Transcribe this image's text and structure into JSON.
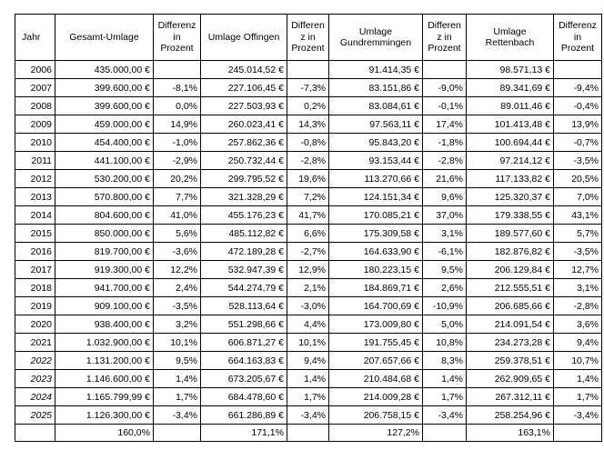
{
  "headers": [
    "Jahr",
    "Gesamt-Umlage",
    "Differenz in Prozent",
    "Umlage Offingen",
    "Differen z in Prozent",
    "Umlage Gundremmingen",
    "Differen z in Prozent",
    "Umlage Rettenbach",
    "Differenz in Prozent"
  ],
  "rows": [
    {
      "year": "2006",
      "italic": false,
      "gesamt": "435.000,00 €",
      "gesamt_diff": "",
      "offingen": "245.014,52 €",
      "offingen_diff": "",
      "gundremmingen": "91.414,35 €",
      "gundremmingen_diff": "",
      "rettenbach": "98.571,13 €",
      "rettenbach_diff": ""
    },
    {
      "year": "2007",
      "italic": false,
      "gesamt": "399.600,00 €",
      "gesamt_diff": "-8,1%",
      "offingen": "227.106,45 €",
      "offingen_diff": "-7,3%",
      "gundremmingen": "83.151,86 €",
      "gundremmingen_diff": "-9,0%",
      "rettenbach": "89.341,69 €",
      "rettenbach_diff": "-9,4%"
    },
    {
      "year": "2008",
      "italic": false,
      "gesamt": "399.600,00 €",
      "gesamt_diff": "0,0%",
      "offingen": "227.503,93 €",
      "offingen_diff": "0,2%",
      "gundremmingen": "83.084,61 €",
      "gundremmingen_diff": "-0,1%",
      "rettenbach": "89.011,46 €",
      "rettenbach_diff": "-0,4%"
    },
    {
      "year": "2009",
      "italic": false,
      "gesamt": "459.000,00 €",
      "gesamt_diff": "14,9%",
      "offingen": "260.023,41 €",
      "offingen_diff": "14,3%",
      "gundremmingen": "97.563,11 €",
      "gundremmingen_diff": "17,4%",
      "rettenbach": "101.413,48 €",
      "rettenbach_diff": "13,9%"
    },
    {
      "year": "2010",
      "italic": false,
      "gesamt": "454.400,00 €",
      "gesamt_diff": "-1,0%",
      "offingen": "257.862,36 €",
      "offingen_diff": "-0,8%",
      "gundremmingen": "95.843,20 €",
      "gundremmingen_diff": "-1,8%",
      "rettenbach": "100.694,44 €",
      "rettenbach_diff": "-0,7%"
    },
    {
      "year": "2011",
      "italic": false,
      "gesamt": "441.100,00 €",
      "gesamt_diff": "-2,9%",
      "offingen": "250.732,44 €",
      "offingen_diff": "-2,8%",
      "gundremmingen": "93.153,44 €",
      "gundremmingen_diff": "-2,8%",
      "rettenbach": "97.214,12 €",
      "rettenbach_diff": "-3,5%"
    },
    {
      "year": "2012",
      "italic": false,
      "gesamt": "530.200,00 €",
      "gesamt_diff": "20,2%",
      "offingen": "299.795,52 €",
      "offingen_diff": "19,6%",
      "gundremmingen": "113.270,66 €",
      "gundremmingen_diff": "21,6%",
      "rettenbach": "117.133,82 €",
      "rettenbach_diff": "20,5%"
    },
    {
      "year": "2013",
      "italic": false,
      "gesamt": "570.800,00 €",
      "gesamt_diff": "7,7%",
      "offingen": "321.328,29 €",
      "offingen_diff": "7,2%",
      "gundremmingen": "124.151,34 €",
      "gundremmingen_diff": "9,6%",
      "rettenbach": "125.320,37 €",
      "rettenbach_diff": "7,0%"
    },
    {
      "year": "2014",
      "italic": false,
      "gesamt": "804.600,00 €",
      "gesamt_diff": "41,0%",
      "offingen": "455.176,23 €",
      "offingen_diff": "41,7%",
      "gundremmingen": "170.085,21 €",
      "gundremmingen_diff": "37,0%",
      "rettenbach": "179.338,55 €",
      "rettenbach_diff": "43,1%"
    },
    {
      "year": "2015",
      "italic": false,
      "gesamt": "850.000,00 €",
      "gesamt_diff": "5,6%",
      "offingen": "485.112,82 €",
      "offingen_diff": "6,6%",
      "gundremmingen": "175.309,58 €",
      "gundremmingen_diff": "3,1%",
      "rettenbach": "189.577,60 €",
      "rettenbach_diff": "5,7%"
    },
    {
      "year": "2016",
      "italic": false,
      "gesamt": "819.700,00 €",
      "gesamt_diff": "-3,6%",
      "offingen": "472.189,28 €",
      "offingen_diff": "-2,7%",
      "gundremmingen": "164.633,90 €",
      "gundremmingen_diff": "-6,1%",
      "rettenbach": "182.876,82 €",
      "rettenbach_diff": "-3,5%"
    },
    {
      "year": "2017",
      "italic": false,
      "gesamt": "919.300,00 €",
      "gesamt_diff": "12,2%",
      "offingen": "532.947,39 €",
      "offingen_diff": "12,9%",
      "gundremmingen": "180.223,15 €",
      "gundremmingen_diff": "9,5%",
      "rettenbach": "206.129,84 €",
      "rettenbach_diff": "12,7%"
    },
    {
      "year": "2018",
      "italic": false,
      "gesamt": "941.700,00 €",
      "gesamt_diff": "2,4%",
      "offingen": "544.274,79 €",
      "offingen_diff": "2,1%",
      "gundremmingen": "184.869,71 €",
      "gundremmingen_diff": "2,6%",
      "rettenbach": "212.555,51 €",
      "rettenbach_diff": "3,1%"
    },
    {
      "year": "2019",
      "italic": false,
      "gesamt": "909.100,00 €",
      "gesamt_diff": "-3,5%",
      "offingen": "528.113,64 €",
      "offingen_diff": "-3,0%",
      "gundremmingen": "164.700,69 €",
      "gundremmingen_diff": "-10,9%",
      "rettenbach": "206.685,66 €",
      "rettenbach_diff": "-2,8%"
    },
    {
      "year": "2020",
      "italic": false,
      "gesamt": "938.400,00 €",
      "gesamt_diff": "3,2%",
      "offingen": "551.298,66 €",
      "offingen_diff": "4,4%",
      "gundremmingen": "173.009,80 €",
      "gundremmingen_diff": "5,0%",
      "rettenbach": "214.091,54 €",
      "rettenbach_diff": "3,6%"
    },
    {
      "year": "2021",
      "italic": false,
      "gesamt": "1.032.900,00 €",
      "gesamt_diff": "10,1%",
      "offingen": "606.871,27 €",
      "offingen_diff": "10,1%",
      "gundremmingen": "191.755,45 €",
      "gundremmingen_diff": "10,8%",
      "rettenbach": "234.273,28 €",
      "rettenbach_diff": "9,4%"
    },
    {
      "year": "2022",
      "italic": true,
      "gesamt": "1.131.200,00 €",
      "gesamt_diff": "9,5%",
      "offingen": "664.163,83 €",
      "offingen_diff": "9,4%",
      "gundremmingen": "207.657,66 €",
      "gundremmingen_diff": "8,3%",
      "rettenbach": "259.378,51 €",
      "rettenbach_diff": "10,7%"
    },
    {
      "year": "2023",
      "italic": true,
      "gesamt": "1.146.600,00 €",
      "gesamt_diff": "1,4%",
      "offingen": "673.205,67 €",
      "offingen_diff": "1,4%",
      "gundremmingen": "210.484,68 €",
      "gundremmingen_diff": "1,4%",
      "rettenbach": "262.909,65 €",
      "rettenbach_diff": "1,4%"
    },
    {
      "year": "2024",
      "italic": true,
      "gesamt": "1.165.799,99 €",
      "gesamt_diff": "1,7%",
      "offingen": "684.478,60 €",
      "offingen_diff": "1,7%",
      "gundremmingen": "214.009,28 €",
      "gundremmingen_diff": "1,7%",
      "rettenbach": "267.312,11 €",
      "rettenbach_diff": "1,7%"
    },
    {
      "year": "2025",
      "italic": true,
      "gesamt": "1.126.300,00 €",
      "gesamt_diff": "-3,4%",
      "offingen": "661.286,89 €",
      "offingen_diff": "-3,4%",
      "gundremmingen": "206.758,15 €",
      "gundremmingen_diff": "-3,4%",
      "rettenbach": "258.254,96 €",
      "rettenbach_diff": "-3,4%"
    }
  ],
  "footer": {
    "gesamt": "160,0%",
    "offingen": "171,1%",
    "gundremmingen": "127,2%",
    "rettenbach": "163,1%"
  }
}
